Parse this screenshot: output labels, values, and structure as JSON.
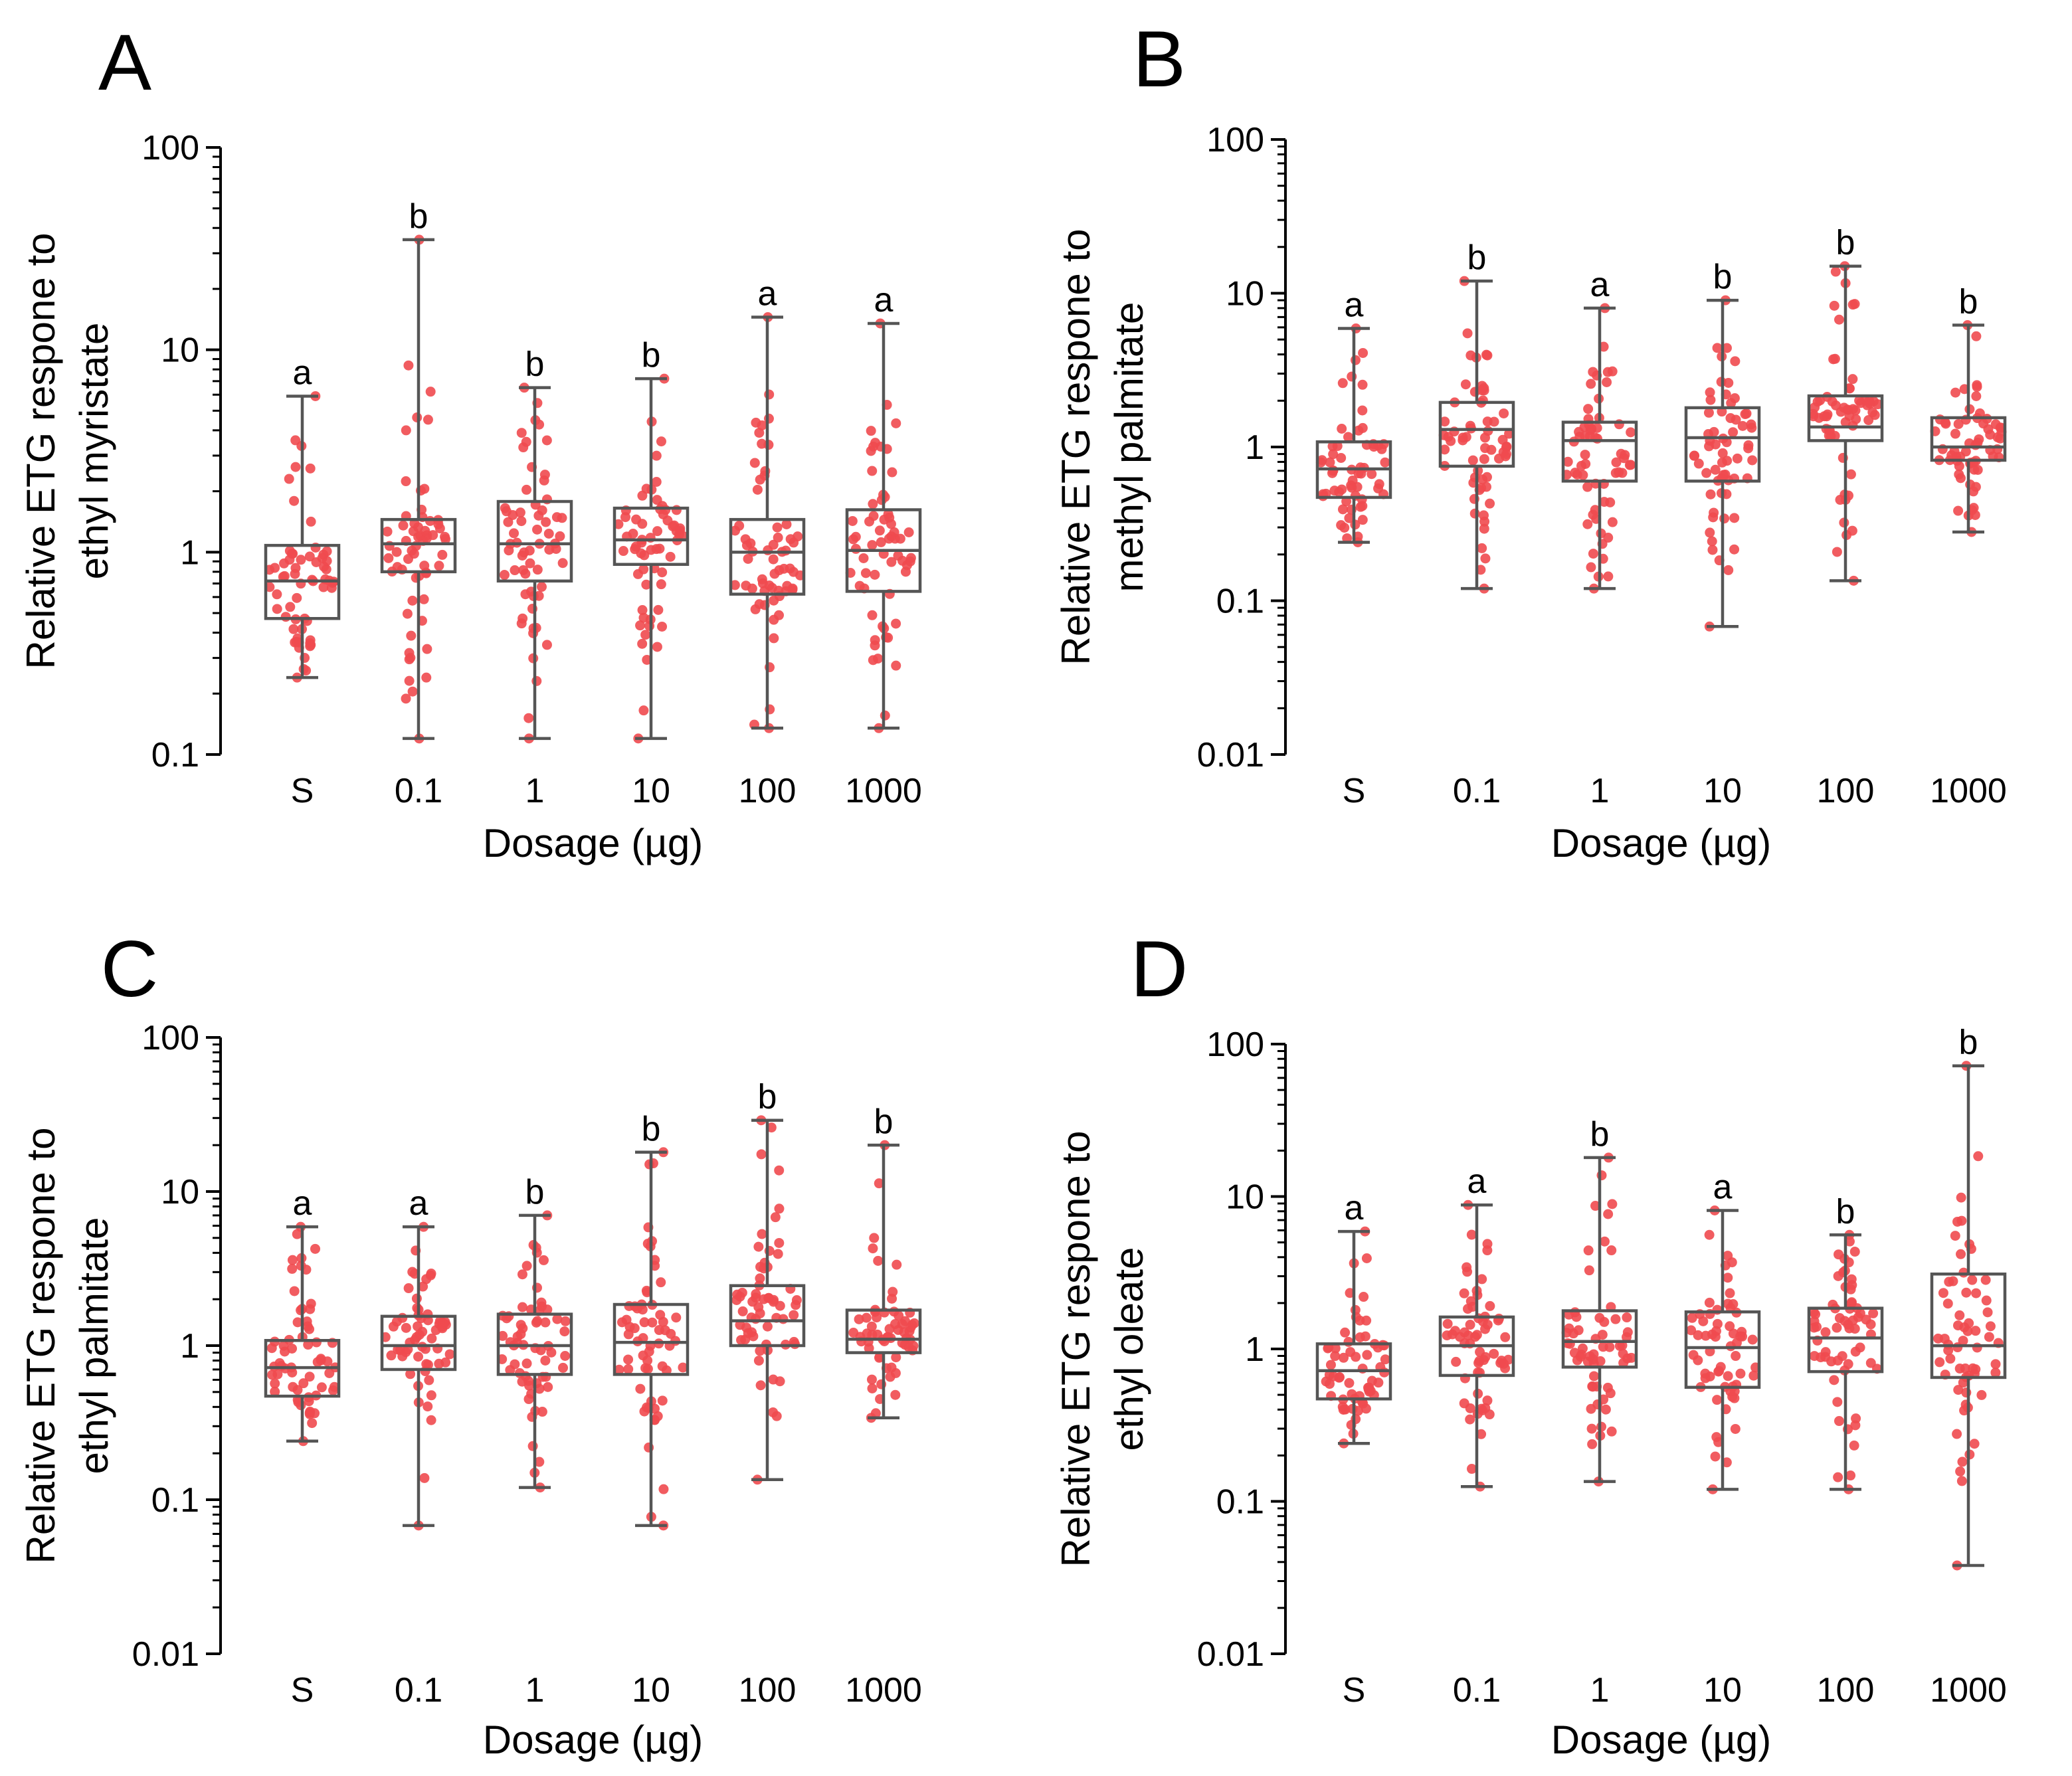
{
  "chart_data": [
    {
      "type": "box",
      "panel_label": "A",
      "xlabel": "Dosage (µg)",
      "ylabel_lines": [
        "Relative ETG respone to",
        "ethyl myristate"
      ],
      "yscale": "log",
      "ylim": [
        0.1,
        100
      ],
      "yticks": [
        "0.1",
        "1",
        "10",
        "100"
      ],
      "categories": [
        "S",
        "0.1",
        "1",
        "10",
        "100",
        "1000"
      ],
      "min": [
        0.24,
        0.12,
        0.12,
        0.12,
        0.135,
        0.135
      ],
      "q1": [
        0.47,
        0.8,
        0.72,
        0.87,
        0.62,
        0.64
      ],
      "median": [
        0.72,
        1.1,
        1.1,
        1.15,
        1.0,
        1.02
      ],
      "q3": [
        1.08,
        1.45,
        1.78,
        1.65,
        1.45,
        1.62
      ],
      "max": [
        5.9,
        35,
        6.5,
        7.2,
        14.5,
        13.5
      ],
      "significance": [
        "a",
        "b",
        "b",
        "b",
        "a",
        "a"
      ]
    },
    {
      "type": "box",
      "panel_label": "B",
      "xlabel": "Dosage (µg)",
      "ylabel_lines": [
        "Relative ETG respone to",
        "methyl palmitate"
      ],
      "yscale": "log",
      "ylim": [
        0.01,
        100
      ],
      "yticks": [
        "0.01",
        "0.1",
        "1",
        "10",
        "100"
      ],
      "categories": [
        "S",
        "0.1",
        "1",
        "10",
        "100",
        "1000"
      ],
      "min": [
        0.24,
        0.12,
        0.12,
        0.068,
        0.135,
        0.28
      ],
      "q1": [
        0.47,
        0.75,
        0.6,
        0.6,
        1.1,
        0.82
      ],
      "median": [
        0.72,
        1.3,
        1.1,
        1.15,
        1.35,
        1.0
      ],
      "q3": [
        1.08,
        1.95,
        1.45,
        1.8,
        2.15,
        1.55
      ],
      "max": [
        5.9,
        12,
        8.0,
        9.0,
        15,
        6.2
      ],
      "significance": [
        "a",
        "b",
        "a",
        "b",
        "b",
        "b"
      ]
    },
    {
      "type": "box",
      "panel_label": "C",
      "xlabel": "Dosage (µg)",
      "ylabel_lines": [
        "Relative ETG respone to",
        "ethyl palmitate"
      ],
      "yscale": "log",
      "ylim": [
        0.01,
        100
      ],
      "yticks": [
        "0.01",
        "0.1",
        "1",
        "10",
        "100"
      ],
      "categories": [
        "S",
        "0.1",
        "1",
        "10",
        "100",
        "1000"
      ],
      "min": [
        0.24,
        0.068,
        0.12,
        0.068,
        0.135,
        0.34
      ],
      "q1": [
        0.47,
        0.7,
        0.65,
        0.65,
        1.0,
        0.9
      ],
      "median": [
        0.72,
        1.0,
        1.0,
        1.05,
        1.45,
        1.1
      ],
      "q3": [
        1.08,
        1.55,
        1.6,
        1.85,
        2.45,
        1.7
      ],
      "max": [
        5.9,
        5.9,
        7.0,
        18,
        29,
        20
      ],
      "significance": [
        "a",
        "a",
        "b",
        "b",
        "b",
        "b"
      ]
    },
    {
      "type": "box",
      "panel_label": "D",
      "xlabel": "Dosage (µg)",
      "ylabel_lines": [
        "Relative ETG respone to",
        "ethyl oleate"
      ],
      "yscale": "log",
      "ylim": [
        0.01,
        100
      ],
      "yticks": [
        "0.01",
        "0.1",
        "1",
        "10",
        "100"
      ],
      "categories": [
        "S",
        "0.1",
        "1",
        "10",
        "100",
        "1000"
      ],
      "min": [
        0.24,
        0.125,
        0.135,
        0.12,
        0.12,
        0.038
      ],
      "q1": [
        0.47,
        0.67,
        0.76,
        0.56,
        0.71,
        0.65
      ],
      "median": [
        0.72,
        1.05,
        1.12,
        1.02,
        1.18,
        1.05
      ],
      "q3": [
        1.08,
        1.62,
        1.78,
        1.75,
        1.85,
        3.1
      ],
      "max": [
        5.9,
        8.8,
        18,
        8.1,
        5.6,
        72
      ],
      "significance": [
        "a",
        "a",
        "b",
        "a",
        "b",
        "b"
      ]
    }
  ]
}
